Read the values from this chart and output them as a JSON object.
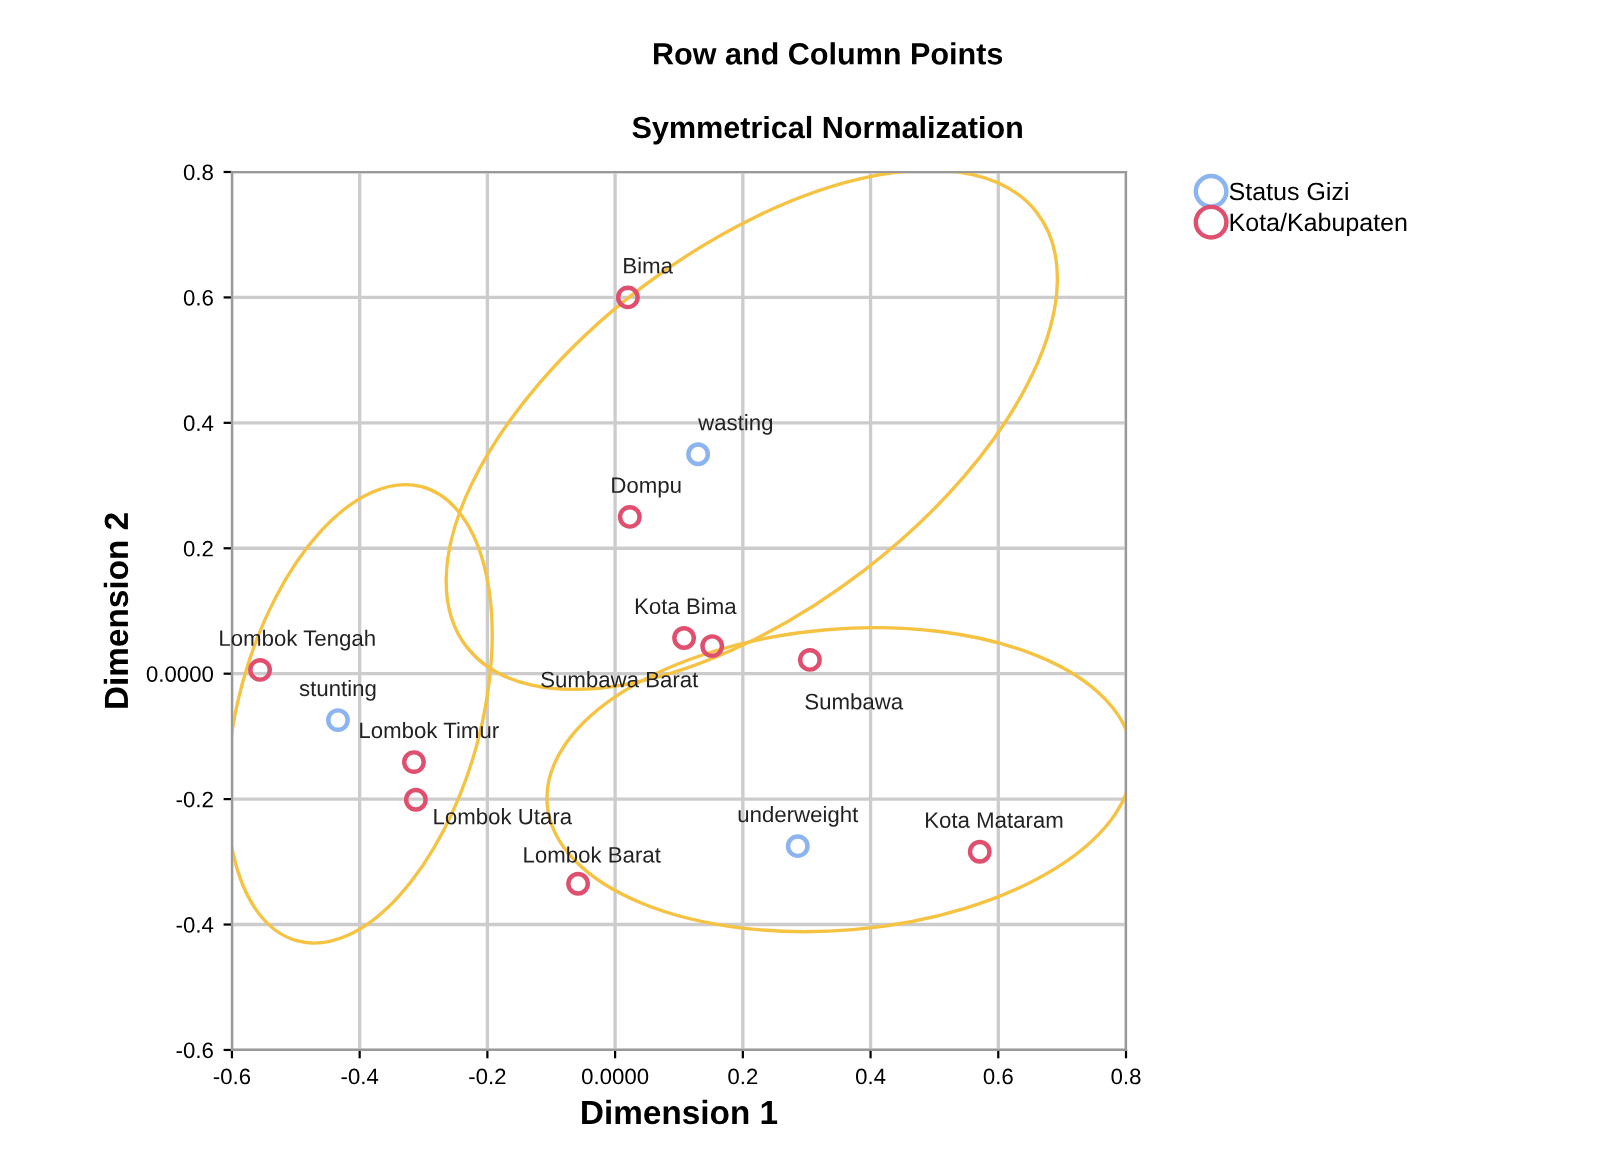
{
  "chart_data": {
    "type": "scatter",
    "title": "Row and Column Points",
    "subtitle": "Symmetrical Normalization",
    "xlabel": "Dimension 1",
    "ylabel": "Dimension 2",
    "xlim": [
      -0.6,
      0.8
    ],
    "xticks": [
      -0.6,
      -0.4,
      -0.2,
      {
        "value": 0,
        "label": "0.0000"
      },
      0.2,
      0.4,
      0.6,
      0.8
    ],
    "ylim": [
      -0.6,
      0.8
    ],
    "yticks": [
      -0.6,
      -0.4,
      -0.2,
      {
        "value": 0,
        "label": "0.0000"
      },
      0.2,
      0.4,
      0.6,
      0.8
    ],
    "grid": true,
    "legend": "top right",
    "marker": "circle",
    "series": [
      {
        "name": "Status Gizi",
        "color": "#8cb4f0",
        "x": [
          0.13,
          -0.434,
          0.286
        ],
        "values": [
          0.35,
          -0.074,
          -0.275
        ]
      },
      {
        "name": "Kota/Kabupaten",
        "color": "#e0506e",
        "x": [
          0.02,
          0.023,
          0.108,
          0.152,
          0.305,
          -0.556,
          -0.315,
          -0.312,
          -0.058,
          0.571
        ],
        "values": [
          0.6,
          0.25,
          0.057,
          0.044,
          0.022,
          0.006,
          -0.141,
          -0.201,
          -0.335,
          -0.284
        ]
      }
    ],
    "annotations": [
      {
        "text": "wasting",
        "x": 0.13,
        "y": 0.35
      },
      {
        "text": "stunting",
        "x": -0.434,
        "y": -0.074
      },
      {
        "text": "underweight",
        "x": 0.286,
        "y": -0.275
      },
      {
        "text": "Bima",
        "x": 0.02,
        "y": 0.6
      },
      {
        "text": "Dompu",
        "x": 0.023,
        "y": 0.25
      },
      {
        "text": "Kota Bima",
        "x": 0.108,
        "y": 0.057
      },
      {
        "text": "Sumbawa Barat",
        "x": 0.152,
        "y": 0.044
      },
      {
        "text": "Sumbawa",
        "x": 0.305,
        "y": 0.022
      },
      {
        "text": "Lombok Tengah",
        "x": -0.556,
        "y": 0.006
      },
      {
        "text": "Lombok Timur",
        "x": -0.315,
        "y": -0.141
      },
      {
        "text": "Lombok Utara",
        "x": -0.312,
        "y": -0.201
      },
      {
        "text": "Lombok Barat",
        "x": -0.058,
        "y": -0.335
      },
      {
        "text": "Kota Mataram",
        "x": 0.571,
        "y": -0.284
      }
    ]
  }
}
